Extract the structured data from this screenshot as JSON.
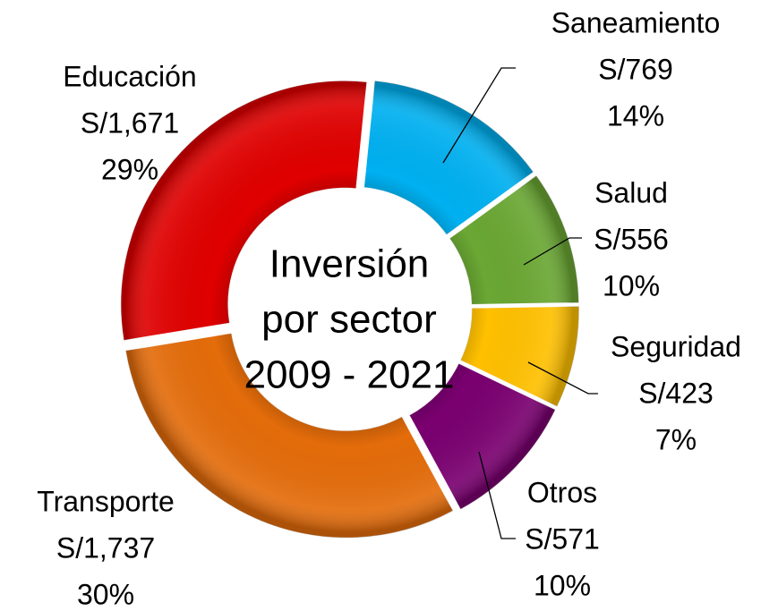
{
  "chart_data": {
    "type": "donut",
    "center_text": [
      "Inversión",
      "por sector",
      "2009 - 2021"
    ],
    "categories": [
      "Saneamiento",
      "Salud",
      "Seguridad",
      "Otros",
      "Transporte",
      "Educación"
    ],
    "values": [
      769,
      556,
      423,
      571,
      1737,
      1671
    ],
    "value_labels": [
      "S/769",
      "S/556",
      "S/423",
      "S/571",
      "S/1,737",
      "S/1,671"
    ],
    "percent_labels": [
      "14%",
      "10%",
      "7%",
      "10%",
      "30%",
      "29%"
    ],
    "colors": [
      "#00b0f0",
      "#6aa733",
      "#ffc000",
      "#7a0070",
      "#e46c0a",
      "#e00000"
    ]
  }
}
